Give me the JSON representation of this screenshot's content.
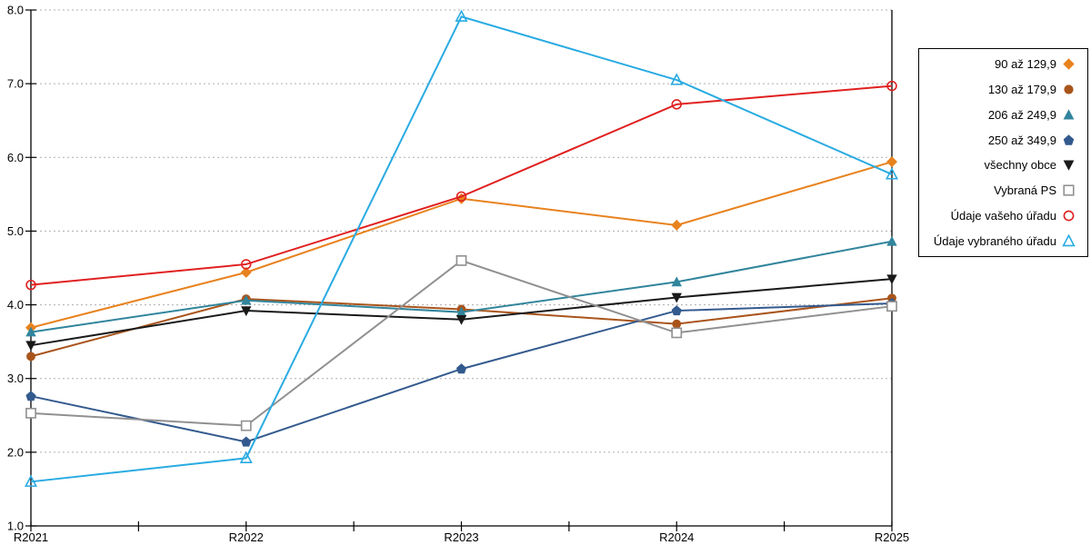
{
  "chart_data": {
    "type": "line",
    "title": "",
    "xlabel": "",
    "ylabel": "",
    "categories": [
      "R2021",
      "R2022",
      "R2023",
      "R2024",
      "R2025"
    ],
    "ylim": [
      1.0,
      8.0
    ],
    "ytick_step": 1.0,
    "y_tick_labels": [
      "8.0",
      "7.0",
      "6.0",
      "5.0",
      "4.0",
      "3.0",
      "2.0",
      "1.0"
    ],
    "grid": "horizontal-dashed",
    "legend_position": "right-outside",
    "series": [
      {
        "name": "90 až 129,9",
        "color": "#E8821E",
        "marker": "diamond",
        "style": "filled",
        "values": [
          3.69,
          4.44,
          5.44,
          5.08,
          5.94
        ]
      },
      {
        "name": "130 až 179,9",
        "color": "#A9541B",
        "marker": "circle",
        "style": "filled",
        "values": [
          3.3,
          4.08,
          3.94,
          3.74,
          4.09
        ]
      },
      {
        "name": "206 až 249,9",
        "color": "#31859C",
        "marker": "triangle-up",
        "style": "filled",
        "values": [
          3.63,
          4.06,
          3.9,
          4.31,
          4.86
        ]
      },
      {
        "name": "250 až 349,9",
        "color": "#335A8E",
        "marker": "pentagon",
        "style": "filled",
        "values": [
          2.76,
          2.14,
          3.13,
          3.92,
          4.02
        ]
      },
      {
        "name": "všechny obce",
        "color": "#1A1A1A",
        "marker": "triangle-down",
        "style": "filled",
        "values": [
          3.45,
          3.92,
          3.8,
          4.1,
          4.35
        ]
      },
      {
        "name": "Vybraná PS",
        "color": "#909090",
        "marker": "square",
        "style": "open",
        "values": [
          2.53,
          2.36,
          4.6,
          3.62,
          3.98
        ]
      },
      {
        "name": "Údaje vašeho úřadu",
        "color": "#E02020",
        "marker": "circle",
        "style": "open",
        "values": [
          4.27,
          4.55,
          5.47,
          6.72,
          6.97
        ]
      },
      {
        "name": "Údaje vybraného úřadu",
        "color": "#29ABE2",
        "marker": "triangle-up",
        "style": "open",
        "values": [
          1.6,
          1.92,
          7.91,
          7.05,
          5.77
        ]
      }
    ],
    "colors": {
      "grid": "#ADADAD",
      "axis": "#000000",
      "background": "#FFFFFF"
    }
  }
}
